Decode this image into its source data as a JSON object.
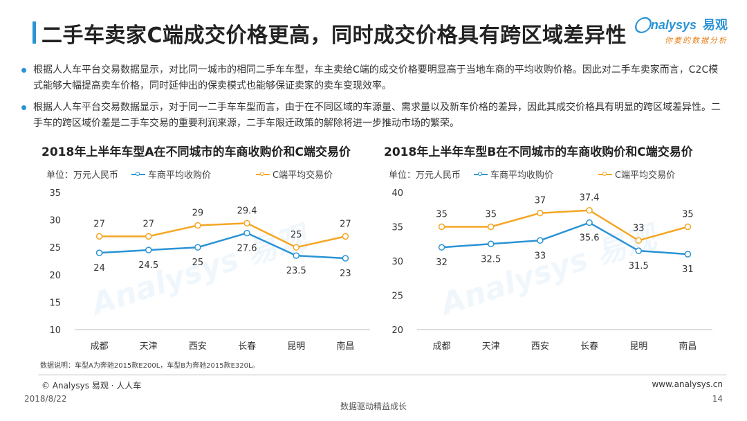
{
  "page": {
    "title": "二手车卖家C端成交价格更高，同时成交价格具有跨区域差异性",
    "logo_brand": "nalysys",
    "logo_cn": "易观",
    "logo_tagline": "你要的数据分析"
  },
  "bullets": [
    "根据人人车平台交易数据显示，对比同一城市的相同二手车车型，车主卖给C端的成交价格要明显高于当地车商的平均收购价格。因此对二手车卖家而言，C2C模式能够大幅提高卖车价格，同时延伸出的保卖模式也能够保证卖家的卖车变现效率。",
    "根据人人车平台交易数据显示，对于同一二手车车型而言，由于在不同区域的车源量、需求量以及新车价格的差异，因此其成交价格具有明显的跨区域差异性。二手车的跨区域价差是二手车交易的重要利润来源，二手车限迁政策的解除将进一步推动市场的繁荣。"
  ],
  "colors": {
    "accent": "#2a93d5",
    "series_blue": "#2a93d5",
    "series_orange": "#f5a623"
  },
  "chart_data": [
    {
      "type": "line",
      "title": "2018年上半年车型A在不同城市的车商收购价和C端交易价",
      "unit_label": "单位：万元人民币",
      "categories": [
        "成都",
        "天津",
        "西安",
        "长春",
        "昆明",
        "南昌"
      ],
      "ylim": [
        10,
        35
      ],
      "yticks": [
        10,
        15,
        20,
        25,
        30,
        35
      ],
      "legend_position": "top",
      "grid": false,
      "series": [
        {
          "name": "车商平均收购价",
          "color": "#2a93d5",
          "values": [
            24,
            24.5,
            25,
            27.6,
            23.5,
            23
          ],
          "labels": [
            "24",
            "24.5",
            "25",
            "27.6",
            "23.5",
            "23"
          ],
          "label_position": "below"
        },
        {
          "name": "C端平均交易价",
          "color": "#f5a623",
          "values": [
            27,
            27,
            29,
            29.4,
            25,
            27
          ],
          "labels": [
            "27",
            "27",
            "29",
            "29.4",
            "25",
            "27"
          ],
          "label_position": "above"
        }
      ]
    },
    {
      "type": "line",
      "title": "2018年上半年车型B在不同城市的车商收购价和C端交易价",
      "unit_label": "单位：万元人民币",
      "categories": [
        "成都",
        "天津",
        "西安",
        "长春",
        "昆明",
        "南昌"
      ],
      "ylim": [
        20,
        40
      ],
      "yticks": [
        20,
        25,
        30,
        35,
        40
      ],
      "legend_position": "top",
      "grid": false,
      "series": [
        {
          "name": "车商平均收购价",
          "color": "#2a93d5",
          "values": [
            32,
            32.5,
            33,
            35.6,
            31.5,
            31
          ],
          "labels": [
            "32",
            "32.5",
            "33",
            "35.6",
            "31.5",
            "31"
          ],
          "label_position": "below"
        },
        {
          "name": "C端平均交易价",
          "color": "#f5a623",
          "values": [
            35,
            35,
            37,
            37.4,
            33,
            35
          ],
          "labels": [
            "35",
            "35",
            "37",
            "37.4",
            "33",
            "35"
          ],
          "label_position": "above"
        }
      ]
    }
  ],
  "footnote": "数据说明：车型A为奔驰2015款E200L，车型B为奔驰2015款E320L。",
  "footer": {
    "copyright": "© Analysys 易观 · 人人车",
    "site": "www.analysys.cn",
    "date": "2018/8/22",
    "slogan": "数据驱动精益成长",
    "page_number": "14"
  }
}
